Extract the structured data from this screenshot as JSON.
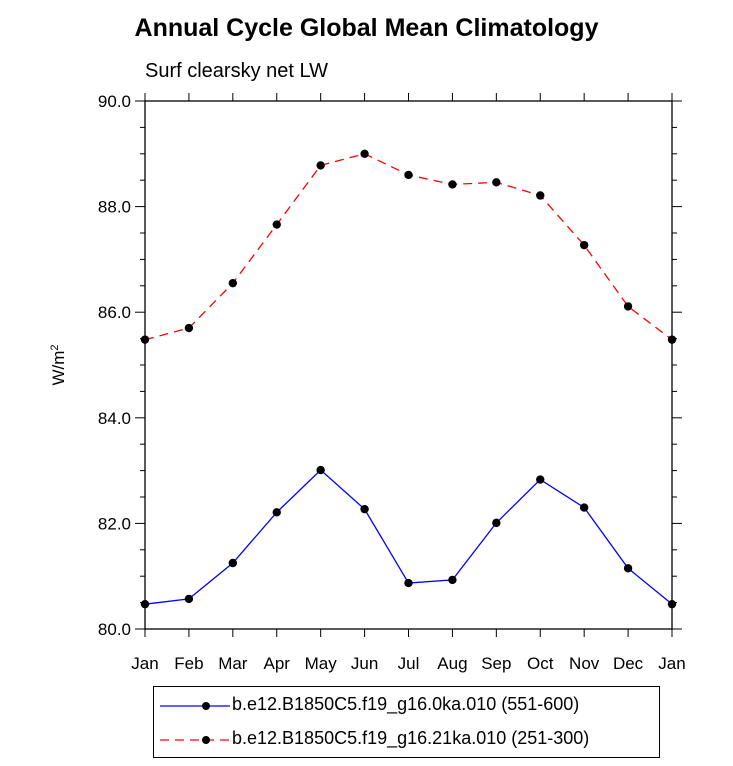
{
  "chart_data": {
    "type": "line",
    "title": "Annual Cycle Global Mean Climatology",
    "subtitle": "Surf clearsky net LW",
    "ylabel": "W/m",
    "ylabel_sup": "2",
    "categories": [
      "Jan",
      "Feb",
      "Mar",
      "Apr",
      "May",
      "Jun",
      "Jul",
      "Aug",
      "Sep",
      "Oct",
      "Nov",
      "Dec",
      "Jan"
    ],
    "ylim": [
      80.0,
      90.0
    ],
    "yticks": [
      "80.0",
      "82.0",
      "84.0",
      "86.0",
      "88.0",
      "90.0"
    ],
    "grid": false,
    "legend_position": "bottom",
    "series": [
      {
        "name": "b.e12.B1850C5.f19_g16.0ka.010 (551-600)",
        "color": "#0000ff",
        "dash": "solid",
        "values": [
          80.47,
          80.57,
          81.25,
          82.21,
          83.01,
          82.27,
          80.87,
          80.93,
          82.01,
          82.83,
          82.3,
          81.15,
          80.47
        ]
      },
      {
        "name": "b.e12.B1850C5.f19_g16.21ka.010 (251-300)",
        "color": "#ff0000",
        "dash": "dashed",
        "values": [
          85.48,
          85.7,
          86.55,
          87.66,
          88.78,
          89.0,
          88.6,
          88.42,
          88.46,
          88.21,
          87.27,
          86.11,
          85.48
        ]
      }
    ]
  }
}
